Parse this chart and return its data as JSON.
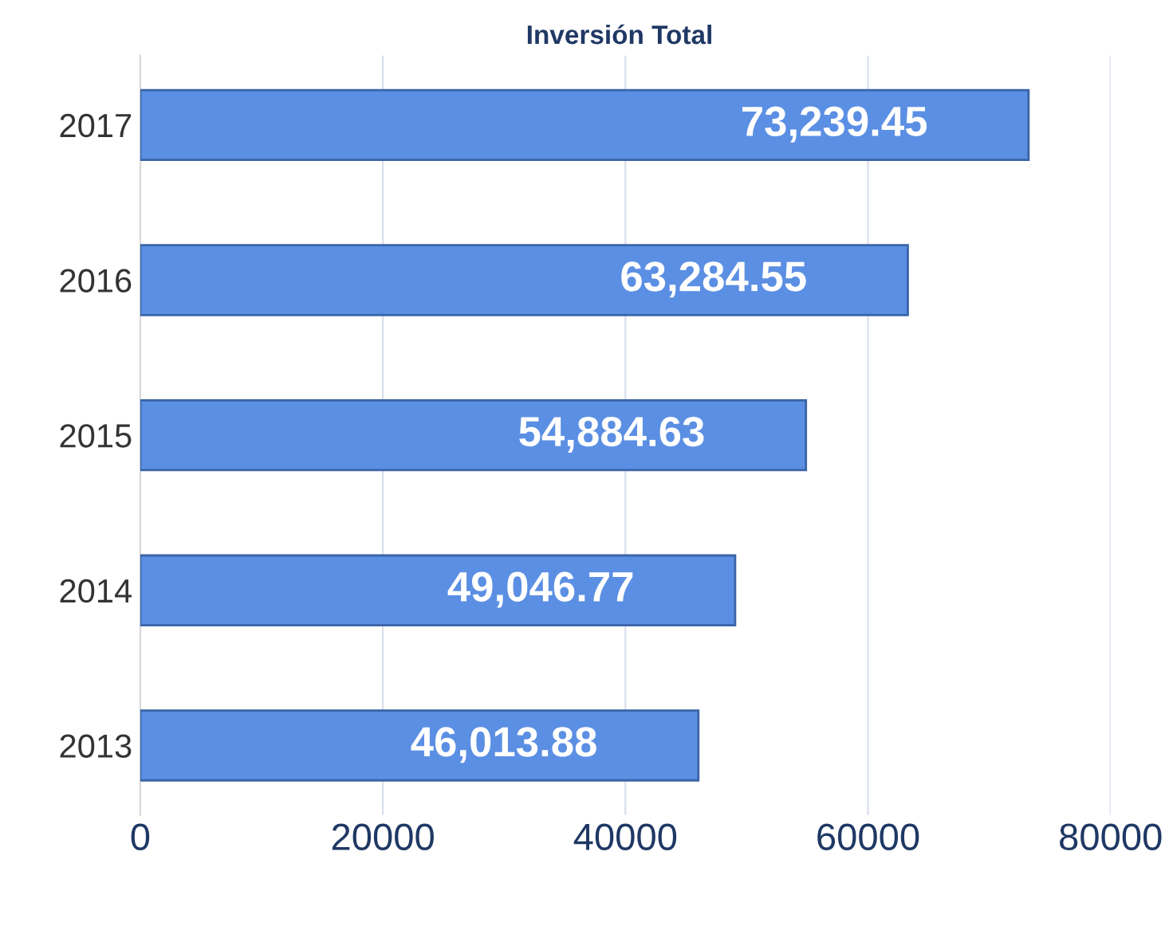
{
  "chart_data": {
    "type": "bar",
    "orientation": "horizontal",
    "title": "Inversión Total",
    "categories": [
      "2017",
      "2016",
      "2015",
      "2014",
      "2013"
    ],
    "values": [
      73239.45,
      63284.55,
      54884.63,
      49046.77,
      46013.88
    ],
    "value_labels": [
      "73,239.45",
      "63,284.55",
      "54,884.63",
      "49,046.77",
      "46,013.88"
    ],
    "color": "#5b8fe3",
    "xlim": [
      0,
      80000
    ],
    "xticks": [
      0,
      20000,
      40000,
      60000,
      80000
    ],
    "grid": "x",
    "legend": false
  }
}
